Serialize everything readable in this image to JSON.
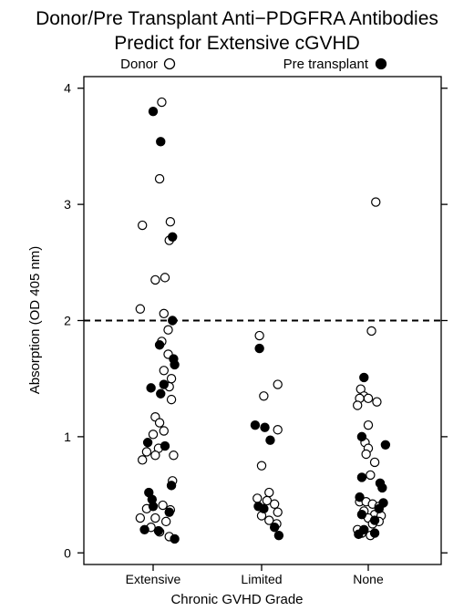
{
  "chart_data": {
    "type": "scatter",
    "title": [
      "Donor/Pre Transplant Anti−PDGFRA Antibodies",
      "Predict for Extensive cGVHD"
    ],
    "xlabel": "Chronic GVHD Grade",
    "ylabel": "Absorption (OD 405 nm)",
    "categories": [
      "Extensive",
      "Limited",
      "None"
    ],
    "ylim": [
      -0.1,
      4.1
    ],
    "yticks": [
      "0",
      "1",
      "2",
      "3",
      "4"
    ],
    "threshold": 2.0,
    "legend_position": "top",
    "grid": false,
    "series": [
      {
        "name": "Donor",
        "marker": "open-circle",
        "points": [
          {
            "cat": "Extensive",
            "j": 0.08,
            "y": 3.88
          },
          {
            "cat": "Extensive",
            "j": 0.06,
            "y": 3.22
          },
          {
            "cat": "Extensive",
            "j": 0.16,
            "y": 2.85
          },
          {
            "cat": "Extensive",
            "j": -0.1,
            "y": 2.82
          },
          {
            "cat": "Extensive",
            "j": 0.15,
            "y": 2.69
          },
          {
            "cat": "Extensive",
            "j": 0.11,
            "y": 2.37
          },
          {
            "cat": "Extensive",
            "j": 0.02,
            "y": 2.35
          },
          {
            "cat": "Extensive",
            "j": -0.12,
            "y": 2.1
          },
          {
            "cat": "Extensive",
            "j": 0.1,
            "y": 2.06
          },
          {
            "cat": "Extensive",
            "j": 0.14,
            "y": 1.92
          },
          {
            "cat": "Extensive",
            "j": 0.08,
            "y": 1.82
          },
          {
            "cat": "Extensive",
            "j": 0.14,
            "y": 1.71
          },
          {
            "cat": "Extensive",
            "j": 0.1,
            "y": 1.57
          },
          {
            "cat": "Extensive",
            "j": 0.17,
            "y": 1.5
          },
          {
            "cat": "Extensive",
            "j": 0.15,
            "y": 1.43
          },
          {
            "cat": "Extensive",
            "j": 0.17,
            "y": 1.32
          },
          {
            "cat": "Extensive",
            "j": 0.02,
            "y": 1.17
          },
          {
            "cat": "Extensive",
            "j": 0.06,
            "y": 1.12
          },
          {
            "cat": "Extensive",
            "j": 0.1,
            "y": 1.05
          },
          {
            "cat": "Extensive",
            "j": 0.0,
            "y": 1.02
          },
          {
            "cat": "Extensive",
            "j": 0.05,
            "y": 0.9
          },
          {
            "cat": "Extensive",
            "j": -0.06,
            "y": 0.87
          },
          {
            "cat": "Extensive",
            "j": 0.02,
            "y": 0.84
          },
          {
            "cat": "Extensive",
            "j": 0.19,
            "y": 0.84
          },
          {
            "cat": "Extensive",
            "j": -0.1,
            "y": 0.8
          },
          {
            "cat": "Extensive",
            "j": 0.18,
            "y": 0.62
          },
          {
            "cat": "Extensive",
            "j": 0.09,
            "y": 0.41
          },
          {
            "cat": "Extensive",
            "j": -0.06,
            "y": 0.38
          },
          {
            "cat": "Extensive",
            "j": 0.16,
            "y": 0.37
          },
          {
            "cat": "Extensive",
            "j": 0.02,
            "y": 0.3
          },
          {
            "cat": "Extensive",
            "j": -0.12,
            "y": 0.3
          },
          {
            "cat": "Extensive",
            "j": 0.12,
            "y": 0.27
          },
          {
            "cat": "Extensive",
            "j": -0.02,
            "y": 0.22
          },
          {
            "cat": "Extensive",
            "j": 0.06,
            "y": 0.18
          },
          {
            "cat": "Extensive",
            "j": 0.15,
            "y": 0.14
          },
          {
            "cat": "Limited",
            "j": -0.02,
            "y": 1.87
          },
          {
            "cat": "Limited",
            "j": 0.15,
            "y": 1.45
          },
          {
            "cat": "Limited",
            "j": 0.02,
            "y": 1.35
          },
          {
            "cat": "Limited",
            "j": 0.15,
            "y": 1.06
          },
          {
            "cat": "Limited",
            "j": 0.0,
            "y": 0.75
          },
          {
            "cat": "Limited",
            "j": 0.07,
            "y": 0.52
          },
          {
            "cat": "Limited",
            "j": -0.04,
            "y": 0.47
          },
          {
            "cat": "Limited",
            "j": 0.05,
            "y": 0.45
          },
          {
            "cat": "Limited",
            "j": 0.12,
            "y": 0.42
          },
          {
            "cat": "Limited",
            "j": 0.15,
            "y": 0.35
          },
          {
            "cat": "Limited",
            "j": 0.0,
            "y": 0.32
          },
          {
            "cat": "Limited",
            "j": 0.07,
            "y": 0.28
          },
          {
            "cat": "Limited",
            "j": 0.14,
            "y": 0.25
          },
          {
            "cat": "None",
            "j": 0.07,
            "y": 3.02
          },
          {
            "cat": "None",
            "j": 0.03,
            "y": 1.91
          },
          {
            "cat": "None",
            "j": -0.07,
            "y": 1.41
          },
          {
            "cat": "None",
            "j": -0.04,
            "y": 1.35
          },
          {
            "cat": "None",
            "j": -0.08,
            "y": 1.33
          },
          {
            "cat": "None",
            "j": 0.0,
            "y": 1.33
          },
          {
            "cat": "None",
            "j": 0.08,
            "y": 1.3
          },
          {
            "cat": "None",
            "j": -0.1,
            "y": 1.27
          },
          {
            "cat": "None",
            "j": 0.0,
            "y": 1.1
          },
          {
            "cat": "None",
            "j": -0.03,
            "y": 0.95
          },
          {
            "cat": "None",
            "j": 0.0,
            "y": 0.9
          },
          {
            "cat": "None",
            "j": -0.02,
            "y": 0.85
          },
          {
            "cat": "None",
            "j": 0.06,
            "y": 0.78
          },
          {
            "cat": "None",
            "j": 0.02,
            "y": 0.67
          },
          {
            "cat": "None",
            "j": -0.08,
            "y": 0.44
          },
          {
            "cat": "None",
            "j": -0.02,
            "y": 0.44
          },
          {
            "cat": "None",
            "j": 0.04,
            "y": 0.42
          },
          {
            "cat": "None",
            "j": 0.1,
            "y": 0.4
          },
          {
            "cat": "None",
            "j": -0.04,
            "y": 0.36
          },
          {
            "cat": "None",
            "j": 0.06,
            "y": 0.33
          },
          {
            "cat": "None",
            "j": 0.12,
            "y": 0.32
          },
          {
            "cat": "None",
            "j": 0.0,
            "y": 0.3
          },
          {
            "cat": "None",
            "j": 0.1,
            "y": 0.27
          },
          {
            "cat": "None",
            "j": 0.04,
            "y": 0.25
          },
          {
            "cat": "None",
            "j": -0.1,
            "y": 0.2
          },
          {
            "cat": "None",
            "j": -0.06,
            "y": 0.17
          },
          {
            "cat": "None",
            "j": 0.02,
            "y": 0.15
          }
        ]
      },
      {
        "name": "Pre transplant",
        "marker": "filled-circle",
        "points": [
          {
            "cat": "Extensive",
            "j": 0.0,
            "y": 3.8
          },
          {
            "cat": "Extensive",
            "j": 0.07,
            "y": 3.54
          },
          {
            "cat": "Extensive",
            "j": 0.18,
            "y": 2.72
          },
          {
            "cat": "Extensive",
            "j": 0.18,
            "y": 2.0
          },
          {
            "cat": "Extensive",
            "j": 0.06,
            "y": 1.79
          },
          {
            "cat": "Extensive",
            "j": 0.19,
            "y": 1.67
          },
          {
            "cat": "Extensive",
            "j": 0.2,
            "y": 1.62
          },
          {
            "cat": "Extensive",
            "j": 0.1,
            "y": 1.45
          },
          {
            "cat": "Extensive",
            "j": -0.02,
            "y": 1.42
          },
          {
            "cat": "Extensive",
            "j": 0.07,
            "y": 1.37
          },
          {
            "cat": "Extensive",
            "j": -0.05,
            "y": 0.95
          },
          {
            "cat": "Extensive",
            "j": 0.11,
            "y": 0.92
          },
          {
            "cat": "Extensive",
            "j": 0.17,
            "y": 0.58
          },
          {
            "cat": "Extensive",
            "j": -0.04,
            "y": 0.52
          },
          {
            "cat": "Extensive",
            "j": -0.01,
            "y": 0.46
          },
          {
            "cat": "Extensive",
            "j": 0.0,
            "y": 0.4
          },
          {
            "cat": "Extensive",
            "j": 0.15,
            "y": 0.35
          },
          {
            "cat": "Extensive",
            "j": -0.08,
            "y": 0.2
          },
          {
            "cat": "Extensive",
            "j": 0.05,
            "y": 0.19
          },
          {
            "cat": "Extensive",
            "j": 0.2,
            "y": 0.12
          },
          {
            "cat": "Limited",
            "j": -0.02,
            "y": 1.76
          },
          {
            "cat": "Limited",
            "j": -0.06,
            "y": 1.1
          },
          {
            "cat": "Limited",
            "j": 0.03,
            "y": 1.08
          },
          {
            "cat": "Limited",
            "j": 0.08,
            "y": 0.97
          },
          {
            "cat": "Limited",
            "j": -0.03,
            "y": 0.4
          },
          {
            "cat": "Limited",
            "j": 0.02,
            "y": 0.38
          },
          {
            "cat": "Limited",
            "j": 0.12,
            "y": 0.22
          },
          {
            "cat": "Limited",
            "j": 0.16,
            "y": 0.15
          },
          {
            "cat": "None",
            "j": -0.04,
            "y": 1.51
          },
          {
            "cat": "None",
            "j": -0.06,
            "y": 1.0
          },
          {
            "cat": "None",
            "j": 0.16,
            "y": 0.93
          },
          {
            "cat": "None",
            "j": -0.06,
            "y": 0.65
          },
          {
            "cat": "None",
            "j": 0.11,
            "y": 0.6
          },
          {
            "cat": "None",
            "j": 0.13,
            "y": 0.56
          },
          {
            "cat": "None",
            "j": -0.08,
            "y": 0.48
          },
          {
            "cat": "None",
            "j": 0.14,
            "y": 0.43
          },
          {
            "cat": "None",
            "j": 0.1,
            "y": 0.38
          },
          {
            "cat": "None",
            "j": -0.06,
            "y": 0.33
          },
          {
            "cat": "None",
            "j": 0.06,
            "y": 0.28
          },
          {
            "cat": "None",
            "j": -0.04,
            "y": 0.2
          },
          {
            "cat": "None",
            "j": 0.06,
            "y": 0.17
          },
          {
            "cat": "None",
            "j": -0.09,
            "y": 0.16
          }
        ]
      }
    ]
  }
}
